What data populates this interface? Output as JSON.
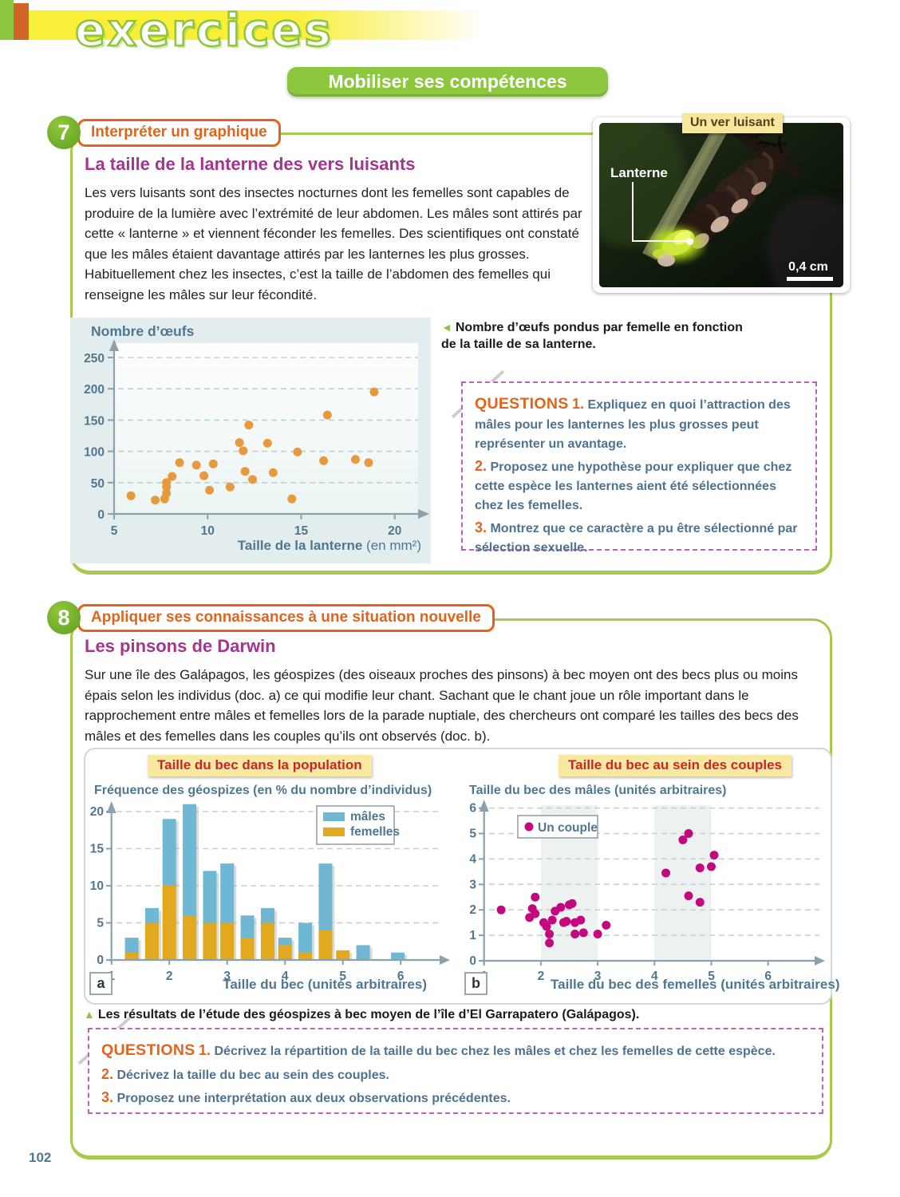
{
  "header": {
    "brand": "exercices",
    "banner": "Mobiliser ses compétences"
  },
  "page_number": "102",
  "ex7": {
    "number": "7",
    "skill": "Interpréter un graphique",
    "title": "La taille de la lanterne des vers luisants",
    "body": "Les vers luisants sont des insectes nocturnes dont les femelles sont capables de produire de la lumière avec l’extrémité de leur abdomen. Les mâles sont attirés par cette « lanterne » et viennent féconder les femelles. Des scientifiques ont constaté que les mâles étaient davantage attirés par les lanternes les plus grosses. Habituellement chez les insectes, c’est la taille de l’abdomen des femelles qui renseigne les mâles sur leur fécondité.",
    "photo": {
      "tag": "Un ver luisant",
      "label": "Lanterne",
      "scale": "0,4 cm"
    },
    "caption_icon": "◄",
    "caption": "Nombre d’œufs pondus par femelle en fonction de la taille de sa lanterne.",
    "questions": {
      "label": "QUESTIONS",
      "items": [
        {
          "num": "1.",
          "text": "Expliquez en quoi l’attraction des mâles pour les lanternes les plus grosses peut représenter un avantage."
        },
        {
          "num": "2.",
          "text": "Proposez une hypothèse pour expliquer que chez cette espèce les lanternes aient été sélectionnées chez les femelles."
        },
        {
          "num": "3.",
          "text": "Montrez que ce caractère a pu être sélectionné par sélection sexuelle."
        }
      ]
    }
  },
  "ex8": {
    "number": "8",
    "skill": "Appliquer ses connaissances à une situation nouvelle",
    "title": "Les pinsons de Darwin",
    "body": "Sur une île des Galápagos, les géospizes (des oiseaux proches des pinsons) à bec moyen ont des becs plus ou moins épais selon les individus (doc. a) ce qui modifie leur chant. Sachant que le chant joue un rôle important dans le rapprochement entre mâles et femelles lors de la parade nuptiale, des chercheurs ont comparé les tailles des becs des mâles et des femelles dans les couples qu’ils ont observés (doc. b).",
    "caption_icon": "▲",
    "caption": "Les résultats de l’étude des géospizes à bec moyen de l’île d’El Garrapatero (Galápagos).",
    "questions": {
      "label": "QUESTIONS",
      "items": [
        {
          "num": "1.",
          "text": "Décrivez la répartition de la taille du bec chez les mâles et chez les femelles de cette espèce."
        },
        {
          "num": "2.",
          "text": "Décrivez la taille du bec au sein des couples."
        },
        {
          "num": "3.",
          "text": "Proposez une interprétation aux deux observations précédentes."
        }
      ]
    }
  },
  "chart_data": [
    {
      "id": "lantern_scatter",
      "type": "scatter",
      "title": "Nombre d’œufs",
      "xlabel": "Taille de la lanterne",
      "xlabel_unit": "(en mm²)",
      "ylabel": "Nombre d’œufs",
      "xlim": [
        5,
        21.5
      ],
      "ylim": [
        0,
        270
      ],
      "xticks": [
        5,
        10,
        15,
        20
      ],
      "yticks": [
        0,
        50,
        100,
        150,
        200,
        250
      ],
      "grid": "dashed-horizontal",
      "point_color": "#e8993b",
      "points": [
        [
          5.9,
          29
        ],
        [
          7.2,
          22
        ],
        [
          7.7,
          24
        ],
        [
          7.8,
          33
        ],
        [
          7.8,
          43
        ],
        [
          7.8,
          50
        ],
        [
          8.1,
          60
        ],
        [
          8.5,
          82
        ],
        [
          9.4,
          78
        ],
        [
          9.8,
          61
        ],
        [
          10.1,
          38
        ],
        [
          10.3,
          80
        ],
        [
          11.2,
          43
        ],
        [
          11.7,
          114
        ],
        [
          11.9,
          101
        ],
        [
          12.0,
          68
        ],
        [
          12.2,
          142
        ],
        [
          12.4,
          55
        ],
        [
          13.2,
          113
        ],
        [
          13.5,
          66
        ],
        [
          14.5,
          24
        ],
        [
          14.8,
          99
        ],
        [
          16.2,
          85
        ],
        [
          16.4,
          158
        ],
        [
          17.9,
          87
        ],
        [
          18.6,
          82
        ],
        [
          18.9,
          195
        ]
      ]
    },
    {
      "id": "bec_population",
      "type": "bar",
      "panel_label": "a",
      "title": "Taille du bec dans la population",
      "axis_title": "Fréquence des géospizes (en % du nombre d’individus)",
      "xlabel": "Taille du bec (unités arbitraires)",
      "xlim": [
        1,
        6.6
      ],
      "ylim": [
        0,
        22
      ],
      "xticks": [
        1,
        2,
        3,
        4,
        5,
        6
      ],
      "yticks": [
        0,
        5,
        10,
        15,
        20
      ],
      "grid": "dashed-horizontal",
      "legend_position": "top-right",
      "categories": [
        1.35,
        1.7,
        2.0,
        2.35,
        2.7,
        3.0,
        3.35,
        3.7,
        4.0,
        4.35,
        4.7,
        5.0,
        5.35,
        5.95
      ],
      "series": [
        {
          "name": "mâles",
          "color": "#6fb7d2",
          "values": [
            3,
            7,
            19,
            21,
            12,
            13,
            6,
            7,
            3,
            5,
            13,
            0,
            2,
            1
          ]
        },
        {
          "name": "femelles",
          "color": "#e2a81e",
          "values": [
            1,
            5,
            10,
            6,
            5,
            5,
            3,
            5,
            2,
            1,
            4,
            1.3,
            0,
            0
          ]
        }
      ]
    },
    {
      "id": "bec_couples",
      "type": "scatter",
      "panel_label": "b",
      "title": "Taille du bec au sein des couples",
      "axis_title": "Taille du bec des mâles (unités arbitraires)",
      "xlabel": "Taille du bec des femelles (unités arbitraires)",
      "legend": "Un couple",
      "xlim": [
        1,
        6.6
      ],
      "ylim": [
        0,
        6.4
      ],
      "xticks": [
        1,
        2,
        3,
        4,
        5,
        6
      ],
      "yticks": [
        0,
        1,
        2,
        3,
        4,
        5,
        6
      ],
      "grid": "dashed-horizontal",
      "shaded_bands_x": [
        [
          2,
          3
        ],
        [
          4,
          5
        ]
      ],
      "point_color": "#c4087f",
      "points": [
        [
          1.3,
          2.0
        ],
        [
          1.8,
          1.7
        ],
        [
          1.85,
          2.05
        ],
        [
          1.9,
          2.5
        ],
        [
          1.9,
          1.85
        ],
        [
          2.05,
          1.5
        ],
        [
          2.1,
          1.35
        ],
        [
          2.15,
          1.05
        ],
        [
          2.15,
          0.7
        ],
        [
          2.2,
          1.6
        ],
        [
          2.25,
          1.95
        ],
        [
          2.35,
          2.1
        ],
        [
          2.4,
          1.5
        ],
        [
          2.45,
          1.55
        ],
        [
          2.5,
          2.2
        ],
        [
          2.55,
          2.25
        ],
        [
          2.6,
          1.5
        ],
        [
          2.6,
          1.05
        ],
        [
          2.7,
          1.6
        ],
        [
          2.75,
          1.1
        ],
        [
          3.0,
          1.05
        ],
        [
          3.15,
          1.4
        ],
        [
          4.2,
          3.45
        ],
        [
          4.5,
          4.75
        ],
        [
          4.6,
          5.0
        ],
        [
          4.6,
          2.55
        ],
        [
          4.8,
          3.65
        ],
        [
          4.8,
          2.3
        ],
        [
          5.0,
          3.7
        ],
        [
          5.05,
          4.15
        ]
      ]
    }
  ]
}
